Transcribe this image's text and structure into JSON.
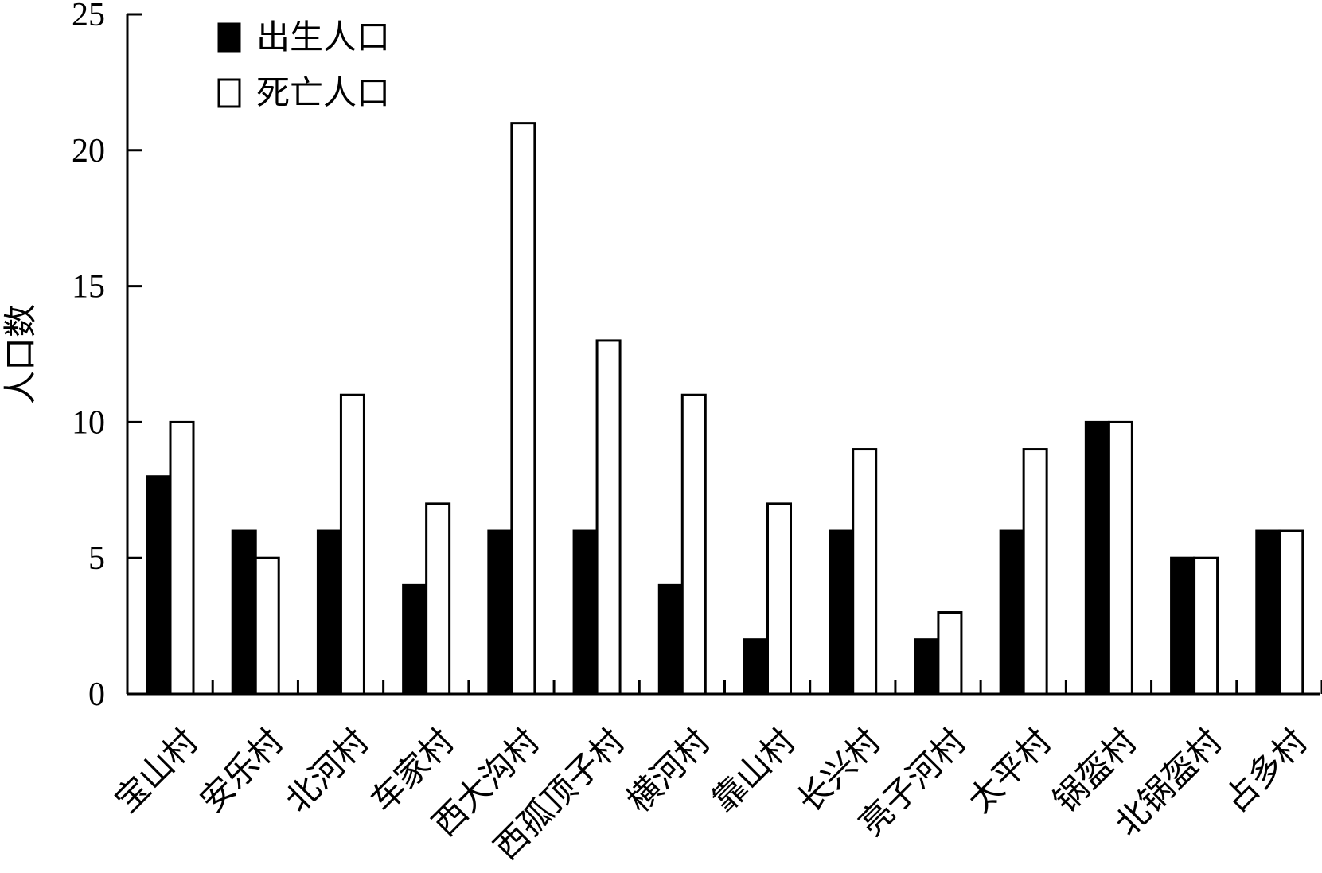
{
  "chart_data": {
    "type": "bar",
    "title": "",
    "xlabel": "",
    "ylabel": "人口数",
    "ylim": [
      0,
      25
    ],
    "yticks": [
      0,
      5,
      10,
      15,
      20,
      25
    ],
    "grid": false,
    "legend_position": "top-left",
    "categories": [
      "宝山村",
      "安乐村",
      "北河村",
      "车家村",
      "西大沟村",
      "西孤顶子村",
      "横河村",
      "靠山村",
      "长兴村",
      "亮子河村",
      "太平村",
      "锅盔村",
      "北锅盔村",
      "占多村"
    ],
    "series": [
      {
        "name": "出生人口",
        "color": "#000000",
        "values": [
          8,
          6,
          6,
          4,
          6,
          6,
          4,
          2,
          6,
          2,
          6,
          10,
          5,
          6
        ]
      },
      {
        "name": "死亡人口",
        "color": "#ffffff",
        "values": [
          10,
          5,
          11,
          7,
          21,
          13,
          11,
          7,
          9,
          3,
          9,
          10,
          5,
          6
        ]
      }
    ]
  }
}
